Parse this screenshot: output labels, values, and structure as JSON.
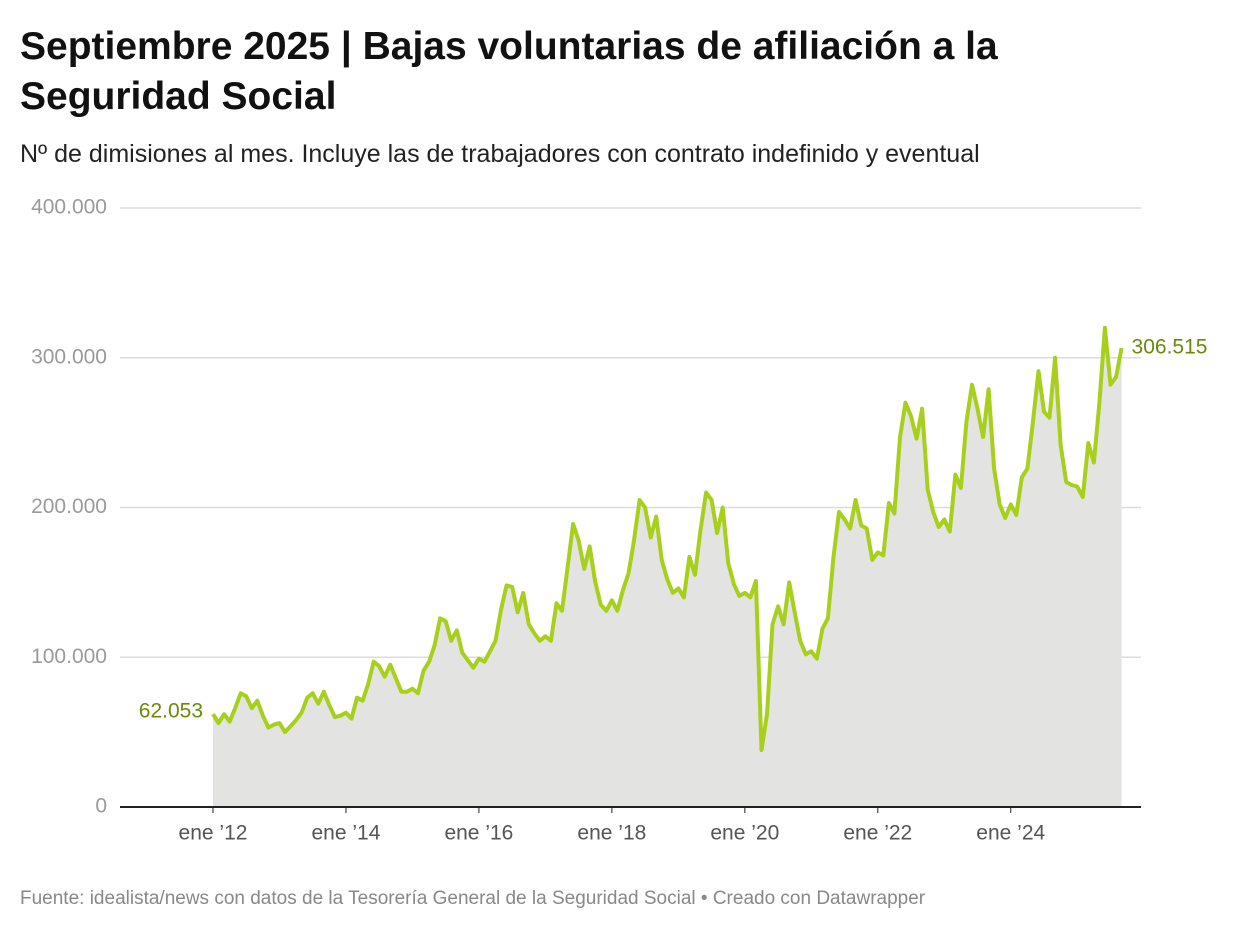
{
  "chart_data": {
    "type": "area-line",
    "title": "Septiembre 2025 | Bajas voluntarias de afiliación a la Seguridad Social",
    "subtitle": "Nº de dimisiones al mes. Incluye las de trabajadores con contrato indefinido y eventual",
    "source": "Fuente: idealista/news con datos de la Tesorería General de la Seguridad Social • Creado con Datawrapper",
    "x": [
      "2012-01",
      "2012-02",
      "2012-03",
      "2012-04",
      "2012-05",
      "2012-06",
      "2012-07",
      "2012-08",
      "2012-09",
      "2012-10",
      "2012-11",
      "2012-12",
      "2013-01",
      "2013-02",
      "2013-03",
      "2013-04",
      "2013-05",
      "2013-06",
      "2013-07",
      "2013-08",
      "2013-09",
      "2013-10",
      "2013-11",
      "2013-12",
      "2014-01",
      "2014-02",
      "2014-03",
      "2014-04",
      "2014-05",
      "2014-06",
      "2014-07",
      "2014-08",
      "2014-09",
      "2014-10",
      "2014-11",
      "2014-12",
      "2015-01",
      "2015-02",
      "2015-03",
      "2015-04",
      "2015-05",
      "2015-06",
      "2015-07",
      "2015-08",
      "2015-09",
      "2015-10",
      "2015-11",
      "2015-12",
      "2016-01",
      "2016-02",
      "2016-03",
      "2016-04",
      "2016-05",
      "2016-06",
      "2016-07",
      "2016-08",
      "2016-09",
      "2016-10",
      "2016-11",
      "2016-12",
      "2017-01",
      "2017-02",
      "2017-03",
      "2017-04",
      "2017-05",
      "2017-06",
      "2017-07",
      "2017-08",
      "2017-09",
      "2017-10",
      "2017-11",
      "2017-12",
      "2018-01",
      "2018-02",
      "2018-03",
      "2018-04",
      "2018-05",
      "2018-06",
      "2018-07",
      "2018-08",
      "2018-09",
      "2018-10",
      "2018-11",
      "2018-12",
      "2019-01",
      "2019-02",
      "2019-03",
      "2019-04",
      "2019-05",
      "2019-06",
      "2019-07",
      "2019-08",
      "2019-09",
      "2019-10",
      "2019-11",
      "2019-12",
      "2020-01",
      "2020-02",
      "2020-03",
      "2020-04",
      "2020-05",
      "2020-06",
      "2020-07",
      "2020-08",
      "2020-09",
      "2020-10",
      "2020-11",
      "2020-12",
      "2021-01",
      "2021-02",
      "2021-03",
      "2021-04",
      "2021-05",
      "2021-06",
      "2021-07",
      "2021-08",
      "2021-09",
      "2021-10",
      "2021-11",
      "2021-12",
      "2022-01",
      "2022-02",
      "2022-03",
      "2022-04",
      "2022-05",
      "2022-06",
      "2022-07",
      "2022-08",
      "2022-09",
      "2022-10",
      "2022-11",
      "2022-12",
      "2023-01",
      "2023-02",
      "2023-03",
      "2023-04",
      "2023-05",
      "2023-06",
      "2023-07",
      "2023-08",
      "2023-09",
      "2023-10",
      "2023-11",
      "2023-12",
      "2024-01",
      "2024-02",
      "2024-03",
      "2024-04",
      "2024-05",
      "2024-06",
      "2024-07",
      "2024-08",
      "2024-09",
      "2024-10",
      "2024-11",
      "2024-12",
      "2025-01",
      "2025-02",
      "2025-03",
      "2025-04",
      "2025-05",
      "2025-06",
      "2025-07",
      "2025-08",
      "2025-09"
    ],
    "series": [
      {
        "color": "#a8cf1c",
        "fill": "#e3e3e2",
        "label_color": "#6a8a0a",
        "values": [
          62053,
          56000,
          62000,
          57000,
          66000,
          76000,
          74000,
          66000,
          71000,
          61000,
          53000,
          55000,
          56000,
          50000,
          54000,
          58000,
          63000,
          73000,
          76000,
          69000,
          77000,
          68000,
          60000,
          61000,
          63000,
          59000,
          73000,
          71000,
          82000,
          97000,
          94000,
          87000,
          95000,
          86000,
          77000,
          77000,
          79000,
          76000,
          91000,
          97000,
          108000,
          126000,
          124000,
          111000,
          118000,
          103000,
          98000,
          93000,
          99000,
          97000,
          104000,
          111000,
          132000,
          148000,
          147000,
          130000,
          143000,
          122000,
          116000,
          111000,
          114000,
          111000,
          136000,
          131000,
          160000,
          189000,
          178000,
          159000,
          174000,
          150000,
          135000,
          131000,
          138000,
          131000,
          145000,
          156000,
          178000,
          205000,
          200000,
          180000,
          194000,
          165000,
          152000,
          143000,
          146000,
          140000,
          167000,
          155000,
          185000,
          210000,
          205000,
          183000,
          200000,
          163000,
          149000,
          141000,
          143000,
          140000,
          151000,
          38000,
          62000,
          122000,
          134000,
          122000,
          150000,
          130000,
          111000,
          102000,
          104000,
          99000,
          119000,
          126000,
          167000,
          197000,
          192000,
          186000,
          205000,
          188000,
          186000,
          165000,
          170000,
          168000,
          203000,
          196000,
          247000,
          270000,
          261000,
          246000,
          266000,
          212000,
          197000,
          187000,
          192000,
          184000,
          222000,
          213000,
          257000,
          282000,
          266000,
          247000,
          279000,
          226000,
          202000,
          193000,
          202000,
          195000,
          220000,
          226000,
          257000,
          291000,
          264000,
          260000,
          300000,
          242000,
          217000,
          215000,
          214000,
          207000,
          243000,
          230000,
          270000,
          320000,
          282000,
          287000,
          306515
        ],
        "value_labels": [
          "62.053",
          null,
          null,
          null,
          null,
          null,
          null,
          null,
          null,
          null,
          null,
          null,
          null,
          null,
          null,
          null,
          null,
          null,
          null,
          null,
          null,
          null,
          null,
          null,
          null,
          null,
          null,
          null,
          null,
          null,
          null,
          null,
          null,
          null,
          null,
          null,
          null,
          null,
          null,
          null,
          null,
          null,
          null,
          null,
          null,
          null,
          null,
          null,
          null,
          null,
          null,
          null,
          null,
          null,
          null,
          null,
          null,
          null,
          null,
          null,
          null,
          null,
          null,
          null,
          null,
          null,
          null,
          null,
          null,
          null,
          null,
          null,
          null,
          null,
          null,
          null,
          null,
          null,
          null,
          null,
          null,
          null,
          null,
          null,
          null,
          null,
          null,
          null,
          null,
          null,
          null,
          null,
          null,
          null,
          null,
          null,
          null,
          null,
          null,
          null,
          null,
          null,
          null,
          null,
          null,
          null,
          null,
          null,
          null,
          null,
          null,
          null,
          null,
          null,
          null,
          null,
          null,
          null,
          null,
          null,
          null,
          null,
          null,
          null,
          null,
          null,
          null,
          null,
          null,
          null,
          null,
          null,
          null,
          null,
          null,
          null,
          null,
          null,
          null,
          null,
          null,
          null,
          null,
          null,
          null,
          null,
          null,
          null,
          null,
          null,
          null,
          null,
          null,
          null,
          null,
          null,
          null,
          null,
          null,
          null,
          null,
          null,
          null,
          null,
          "306.515"
        ]
      }
    ],
    "ylim": [
      0,
      400000
    ],
    "yticks": [
      0,
      {
        "value": 100000,
        "label": "100.000"
      },
      {
        "value": 200000,
        "label": "200.000"
      },
      {
        "value": 300000,
        "label": "300.000"
      },
      {
        "value": 400000,
        "label": "400.000"
      }
    ],
    "xticks": [
      {
        "value": "2012-01",
        "label": "ene ’12"
      },
      {
        "value": "2014-01",
        "label": "ene ’14"
      },
      {
        "value": "2016-01",
        "label": "ene ’16"
      },
      {
        "value": "2018-01",
        "label": "ene ’18"
      },
      {
        "value": "2020-01",
        "label": "ene ’20"
      },
      {
        "value": "2022-01",
        "label": "ene ’22"
      },
      {
        "value": "2024-01",
        "label": "ene ’24"
      }
    ],
    "grid": true
  }
}
